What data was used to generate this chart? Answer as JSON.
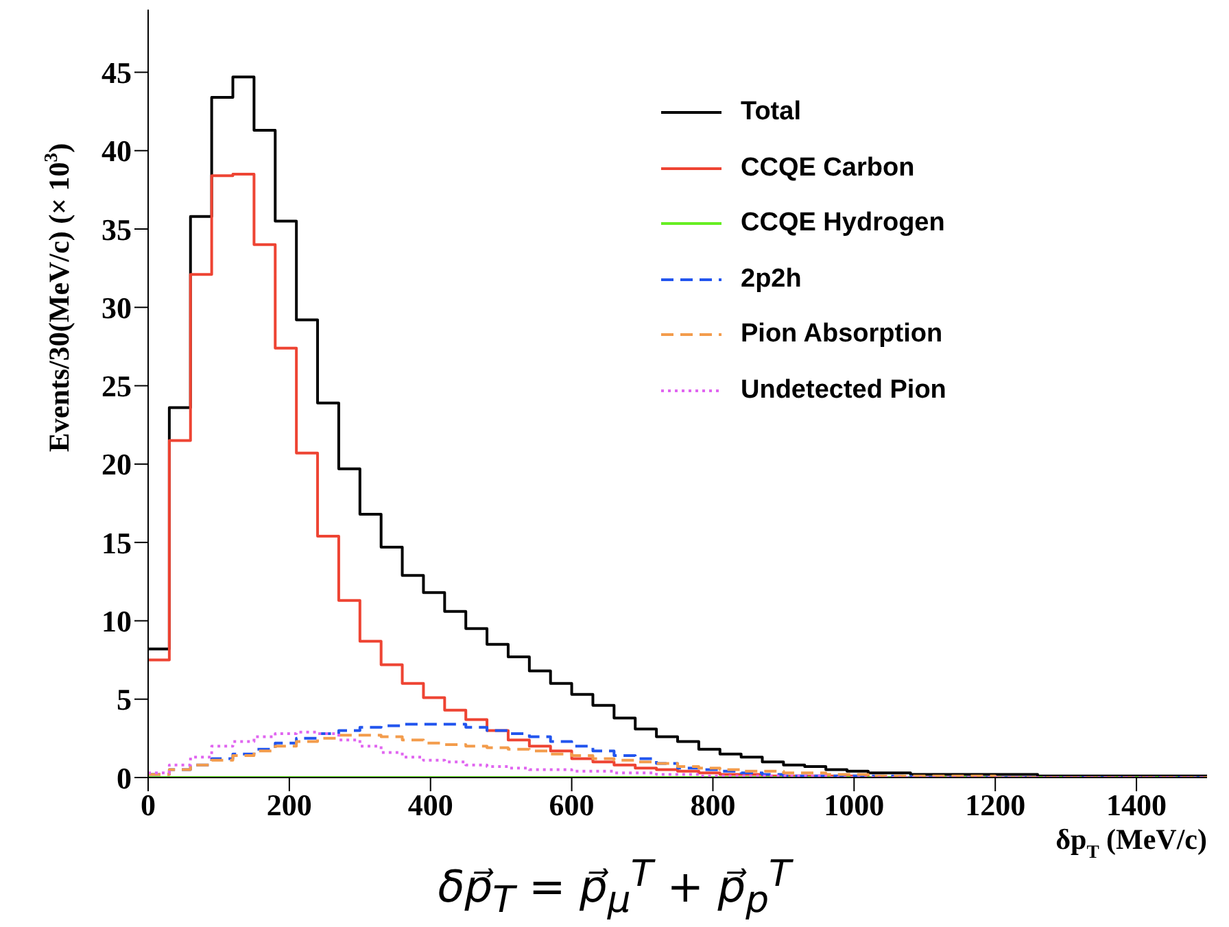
{
  "chart_data": {
    "type": "histogram",
    "xlabel": "δp$_{T}$ (MeV/c)",
    "ylabel": "Events/30(MeV/c) (× 10$^{3}$)",
    "annotations": [
      "δp⃗$_{T}$ = p⃗$_{μ}$$^{T}$ + p⃗$_{p}$$^{T}$"
    ],
    "bins": [
      0,
      30,
      60,
      90,
      120,
      150,
      180,
      210,
      240,
      270,
      300,
      330,
      360,
      390,
      420,
      450,
      480,
      510,
      540,
      570,
      600,
      630,
      660,
      690,
      720,
      750,
      780,
      810,
      840,
      870,
      900,
      930,
      960,
      990,
      1020,
      1050,
      1080,
      1110,
      1140,
      1170,
      1200,
      1230,
      1260,
      1290,
      1320,
      1350,
      1380,
      1410,
      1440,
      1470,
      1500
    ],
    "series": [
      {
        "name": "Total",
        "color": "#000000",
        "line_style": "solid",
        "values": [
          8.2,
          23.6,
          35.8,
          43.4,
          44.7,
          41.3,
          35.5,
          29.2,
          23.9,
          19.7,
          16.8,
          14.7,
          12.9,
          11.8,
          10.6,
          9.5,
          8.5,
          7.7,
          6.8,
          6.0,
          5.3,
          4.6,
          3.8,
          3.1,
          2.6,
          2.3,
          1.8,
          1.5,
          1.3,
          1.0,
          0.8,
          0.7,
          0.5,
          0.4,
          0.3,
          0.3,
          0.2,
          0.2,
          0.2,
          0.2,
          0.2,
          0.2,
          0.1,
          0.1,
          0.1,
          0.1,
          0.1,
          0.1,
          0.1,
          0.1
        ]
      },
      {
        "name": "CCQE Carbon",
        "color": "#ee4433",
        "line_style": "solid",
        "values": [
          7.5,
          21.5,
          32.1,
          38.4,
          38.5,
          34.0,
          27.4,
          20.7,
          15.4,
          11.3,
          8.7,
          7.2,
          6.0,
          5.1,
          4.3,
          3.7,
          3.0,
          2.4,
          2.0,
          1.7,
          1.2,
          1.0,
          0.8,
          0.6,
          0.5,
          0.4,
          0.3,
          0.2,
          0.2,
          0.1,
          0.1,
          0.1,
          0.1,
          0.1,
          0,
          0,
          0,
          0,
          0,
          0,
          0,
          0,
          0,
          0,
          0,
          0,
          0,
          0,
          0,
          0
        ]
      },
      {
        "name": "CCQE Hydrogen",
        "color": "#66ee22",
        "line_style": "solid",
        "values": [
          0,
          0,
          0,
          0,
          0,
          0,
          0,
          0,
          0,
          0,
          0,
          0,
          0,
          0,
          0,
          0,
          0,
          0,
          0,
          0,
          0,
          0,
          0,
          0,
          0,
          0,
          0,
          0,
          0,
          0,
          0,
          0,
          0,
          0,
          0,
          0,
          0,
          0,
          0,
          0,
          0,
          0,
          0,
          0,
          0,
          0,
          0,
          0,
          0,
          0
        ]
      },
      {
        "name": "2p2h",
        "color": "#2255ee",
        "line_style": "dashed",
        "values": [
          0.2,
          0.5,
          0.8,
          1.2,
          1.5,
          1.8,
          2.2,
          2.5,
          2.8,
          3.0,
          3.2,
          3.3,
          3.4,
          3.4,
          3.4,
          3.2,
          3.0,
          2.8,
          2.6,
          2.3,
          2.0,
          1.7,
          1.4,
          1.2,
          0.9,
          0.6,
          0.5,
          0.4,
          0.3,
          0.2,
          0.1,
          0.1,
          0.1,
          0.1,
          0.1,
          0.1,
          0,
          0,
          0,
          0,
          0,
          0,
          0,
          0,
          0,
          0,
          0,
          0,
          0,
          0
        ]
      },
      {
        "name": "Pion Absorption",
        "color": "#f39c4c",
        "line_style": "dashed",
        "values": [
          0.2,
          0.5,
          0.8,
          1.1,
          1.4,
          1.7,
          2.0,
          2.3,
          2.5,
          2.7,
          2.7,
          2.6,
          2.4,
          2.2,
          2.1,
          2.0,
          1.9,
          1.8,
          1.7,
          1.5,
          1.4,
          1.2,
          1.1,
          1.0,
          0.9,
          0.7,
          0.6,
          0.5,
          0.4,
          0.4,
          0.3,
          0.3,
          0.2,
          0.2,
          0.1,
          0.1,
          0.1,
          0.1,
          0.1,
          0.1,
          0,
          0,
          0,
          0,
          0,
          0,
          0,
          0,
          0,
          0
        ]
      },
      {
        "name": "Undetected Pion",
        "color": "#e066f0",
        "line_style": "dotted",
        "values": [
          0.3,
          0.8,
          1.3,
          2.0,
          2.3,
          2.6,
          2.8,
          2.9,
          2.8,
          2.4,
          2.0,
          1.6,
          1.3,
          1.1,
          1.0,
          0.8,
          0.7,
          0.6,
          0.5,
          0.5,
          0.4,
          0.4,
          0.3,
          0.3,
          0.2,
          0.2,
          0.1,
          0.1,
          0.1,
          0.1,
          0.1,
          0.1,
          0,
          0,
          0,
          0,
          0,
          0,
          0,
          0,
          0,
          0,
          0,
          0,
          0,
          0,
          0,
          0,
          0,
          0
        ]
      }
    ],
    "xlim": [
      0,
      1500
    ],
    "xticks": [
      0,
      200,
      400,
      600,
      800,
      1000,
      1200,
      1400
    ],
    "ylim": [
      0,
      49
    ],
    "yticks": [
      0,
      5,
      10,
      15,
      20,
      25,
      30,
      35,
      40,
      45
    ],
    "grid": false,
    "legend": "top right"
  }
}
